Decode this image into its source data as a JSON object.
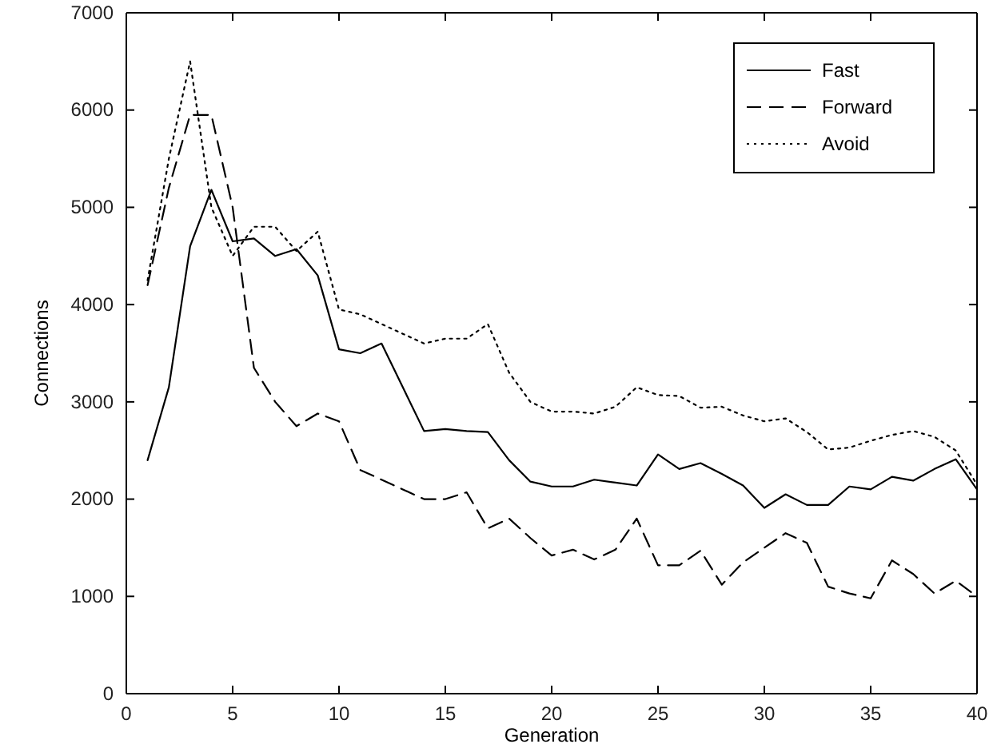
{
  "chart_data": {
    "type": "line",
    "xlabel": "Generation",
    "ylabel": "Connections",
    "x": [
      1,
      2,
      3,
      4,
      5,
      6,
      7,
      8,
      9,
      10,
      11,
      12,
      13,
      14,
      15,
      16,
      17,
      18,
      19,
      20,
      21,
      22,
      23,
      24,
      25,
      26,
      27,
      28,
      29,
      30,
      31,
      32,
      33,
      34,
      35,
      36,
      37,
      38,
      39,
      40
    ],
    "series": [
      {
        "name": "Fast",
        "color": "#000000",
        "line_style": "solid",
        "values": [
          2400,
          3150,
          4600,
          5180,
          4650,
          4680,
          4500,
          4570,
          4300,
          3540,
          3500,
          3600,
          3150,
          2700,
          2720,
          2700,
          2690,
          2400,
          2180,
          2130,
          2130,
          2200,
          2170,
          2140,
          2460,
          2310,
          2370,
          2260,
          2140,
          1910,
          2050,
          1940,
          1940,
          2130,
          2100,
          2230,
          2190,
          2310,
          2410,
          2100
        ]
      },
      {
        "name": "Forward",
        "color": "#000000",
        "line_style": "dashed",
        "values": [
          4200,
          5200,
          5950,
          5950,
          5000,
          3350,
          3000,
          2750,
          2880,
          2800,
          2300,
          2200,
          2100,
          2000,
          2000,
          2070,
          1700,
          1800,
          1600,
          1420,
          1480,
          1380,
          1480,
          1800,
          1320,
          1320,
          1470,
          1120,
          1350,
          1500,
          1650,
          1550,
          1100,
          1030,
          980,
          1370,
          1230,
          1030,
          1160,
          1000
        ]
      },
      {
        "name": "Avoid",
        "color": "#000000",
        "line_style": "dotted",
        "values": [
          4250,
          5500,
          6500,
          5000,
          4500,
          4800,
          4800,
          4550,
          4750,
          3950,
          3900,
          3800,
          3700,
          3600,
          3650,
          3650,
          3800,
          3300,
          3000,
          2900,
          2900,
          2880,
          2950,
          3150,
          3070,
          3060,
          2940,
          2950,
          2860,
          2800,
          2830,
          2690,
          2510,
          2530,
          2600,
          2660,
          2700,
          2640,
          2500,
          2150
        ]
      }
    ],
    "xlim": [
      0,
      40
    ],
    "xticks": [
      0,
      5,
      10,
      15,
      20,
      25,
      30,
      35,
      40
    ],
    "ylim": [
      0,
      7000
    ],
    "yticks": [
      0,
      1000,
      2000,
      3000,
      4000,
      5000,
      6000,
      7000
    ],
    "grid": false,
    "legend": "top right",
    "marker": "none"
  }
}
